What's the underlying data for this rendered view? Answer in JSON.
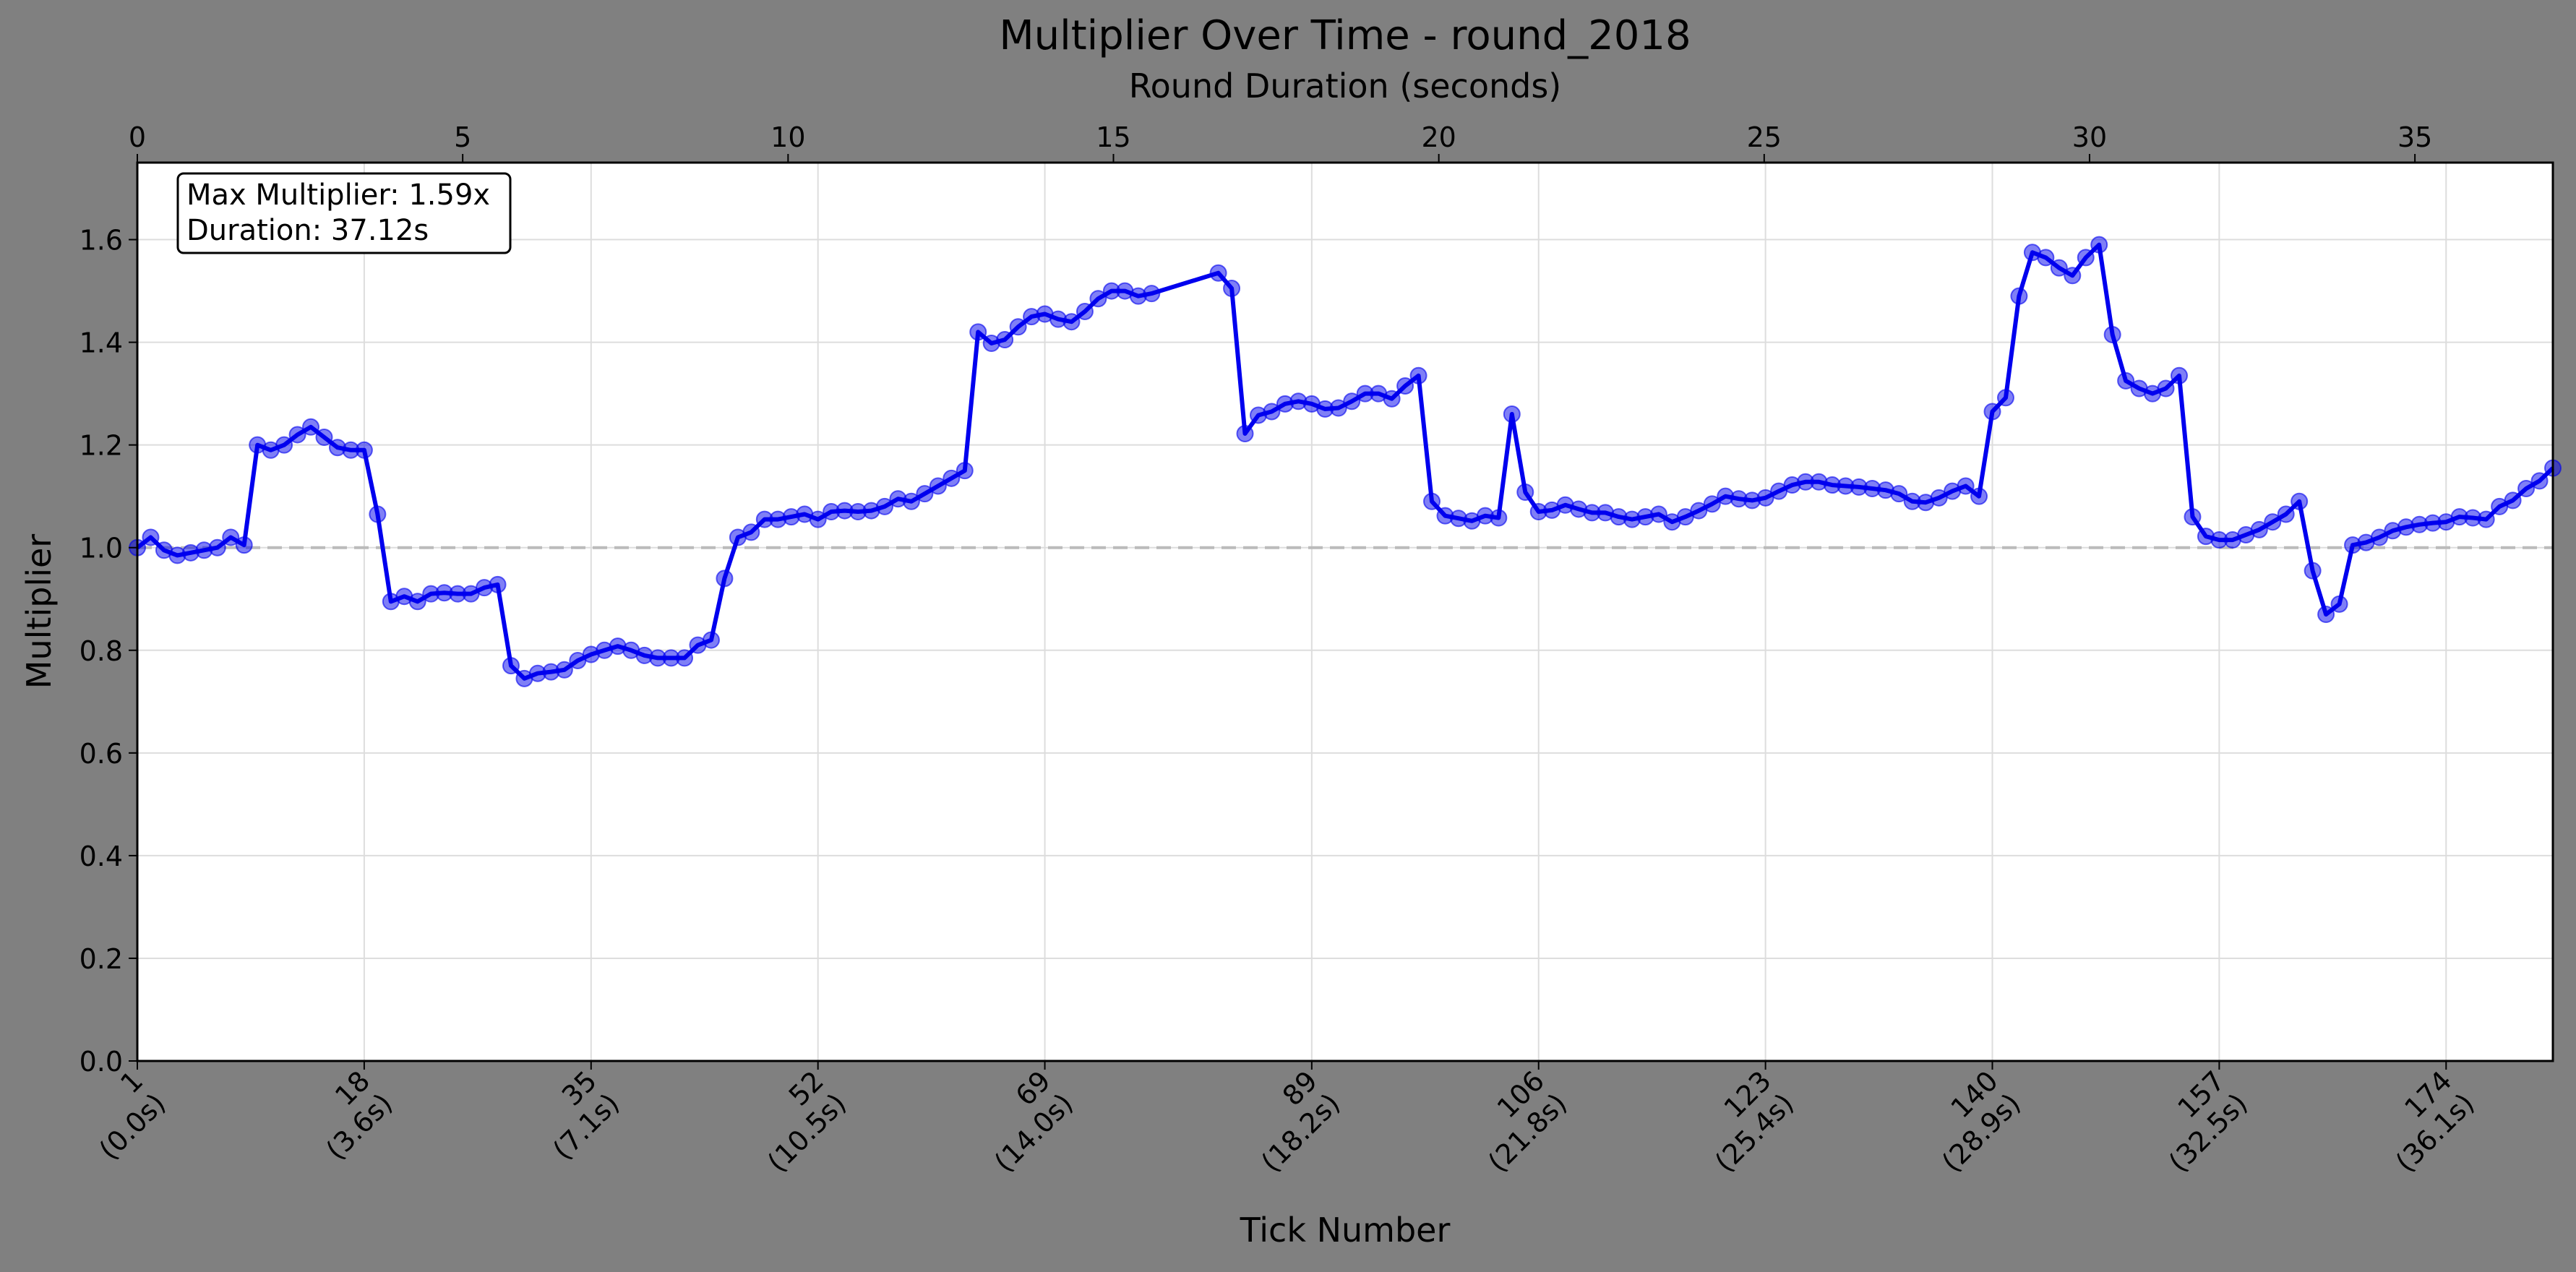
{
  "chart_data": {
    "type": "line",
    "title": "Multiplier Over Time - round_2018",
    "xlabel": "Tick Number",
    "ylabel": "Multiplier",
    "top_xlabel": "Round Duration (seconds)",
    "xlim": [
      1,
      182
    ],
    "ylim": [
      0,
      1.75
    ],
    "top_xlim": [
      0,
      37.12
    ],
    "y_ticks": [
      "0.0",
      "0.2",
      "0.4",
      "0.6",
      "0.8",
      "1.0",
      "1.2",
      "1.4",
      "1.6"
    ],
    "top_x_ticks": [
      "0",
      "5",
      "10",
      "15",
      "20",
      "25",
      "30",
      "35"
    ],
    "x_ticks": [
      {
        "tick": "1",
        "time": "(0.0s)"
      },
      {
        "tick": "18",
        "time": "(3.6s)"
      },
      {
        "tick": "35",
        "time": "(7.1s)"
      },
      {
        "tick": "52",
        "time": "(10.5s)"
      },
      {
        "tick": "69",
        "time": "(14.0s)"
      },
      {
        "tick": "89",
        "time": "(18.2s)"
      },
      {
        "tick": "106",
        "time": "(21.8s)"
      },
      {
        "tick": "123",
        "time": "(25.4s)"
      },
      {
        "tick": "140",
        "time": "(28.9s)"
      },
      {
        "tick": "157",
        "time": "(32.5s)"
      },
      {
        "tick": "174",
        "time": "(36.1s)"
      }
    ],
    "grid": true,
    "reference_line": 1.0,
    "annotation": {
      "max_label": "Max Multiplier: 1.59x",
      "duration_label": "Duration: 37.12s"
    },
    "series": [
      {
        "color": "#0000ee",
        "points": [
          [
            1,
            1.0
          ],
          [
            2,
            1.02
          ],
          [
            3,
            0.995
          ],
          [
            4,
            0.985
          ],
          [
            5,
            0.99
          ],
          [
            6,
            0.995
          ],
          [
            7,
            1.0
          ],
          [
            8,
            1.02
          ],
          [
            9,
            1.005
          ],
          [
            10,
            1.2
          ],
          [
            11,
            1.19
          ],
          [
            12,
            1.2
          ],
          [
            13,
            1.22
          ],
          [
            14,
            1.235
          ],
          [
            15,
            1.215
          ],
          [
            16,
            1.195
          ],
          [
            17,
            1.19
          ],
          [
            18,
            1.19
          ],
          [
            19,
            1.065
          ],
          [
            20,
            0.895
          ],
          [
            21,
            0.905
          ],
          [
            22,
            0.895
          ],
          [
            23,
            0.91
          ],
          [
            24,
            0.912
          ],
          [
            25,
            0.91
          ],
          [
            26,
            0.91
          ],
          [
            27,
            0.922
          ],
          [
            28,
            0.928
          ],
          [
            29,
            0.77
          ],
          [
            30,
            0.745
          ],
          [
            31,
            0.755
          ],
          [
            32,
            0.758
          ],
          [
            33,
            0.762
          ],
          [
            34,
            0.78
          ],
          [
            35,
            0.792
          ],
          [
            36,
            0.8
          ],
          [
            37,
            0.808
          ],
          [
            38,
            0.8
          ],
          [
            39,
            0.79
          ],
          [
            40,
            0.785
          ],
          [
            41,
            0.785
          ],
          [
            42,
            0.785
          ],
          [
            43,
            0.81
          ],
          [
            44,
            0.82
          ],
          [
            45,
            0.94
          ],
          [
            46,
            1.02
          ],
          [
            47,
            1.03
          ],
          [
            48,
            1.055
          ],
          [
            49,
            1.055
          ],
          [
            50,
            1.06
          ],
          [
            51,
            1.065
          ],
          [
            52,
            1.055
          ],
          [
            53,
            1.07
          ],
          [
            54,
            1.072
          ],
          [
            55,
            1.07
          ],
          [
            56,
            1.072
          ],
          [
            57,
            1.08
          ],
          [
            58,
            1.095
          ],
          [
            59,
            1.09
          ],
          [
            60,
            1.105
          ],
          [
            61,
            1.12
          ],
          [
            62,
            1.135
          ],
          [
            63,
            1.15
          ],
          [
            64,
            1.42
          ],
          [
            65,
            1.398
          ],
          [
            66,
            1.405
          ],
          [
            67,
            1.43
          ],
          [
            68,
            1.45
          ],
          [
            69,
            1.455
          ],
          [
            70,
            1.445
          ],
          [
            71,
            1.44
          ],
          [
            72,
            1.46
          ],
          [
            73,
            1.485
          ],
          [
            74,
            1.5
          ],
          [
            75,
            1.5
          ],
          [
            76,
            1.49
          ],
          [
            77,
            1.495
          ],
          [
            82,
            1.535
          ],
          [
            83,
            1.505
          ],
          [
            84,
            1.222
          ],
          [
            85,
            1.258
          ],
          [
            86,
            1.265
          ],
          [
            87,
            1.28
          ],
          [
            88,
            1.285
          ],
          [
            89,
            1.28
          ],
          [
            90,
            1.27
          ],
          [
            91,
            1.272
          ],
          [
            92,
            1.285
          ],
          [
            93,
            1.3
          ],
          [
            94,
            1.3
          ],
          [
            95,
            1.29
          ],
          [
            96,
            1.315
          ],
          [
            97,
            1.335
          ],
          [
            98,
            1.09
          ],
          [
            99,
            1.062
          ],
          [
            100,
            1.057
          ],
          [
            101,
            1.052
          ],
          [
            102,
            1.062
          ],
          [
            103,
            1.058
          ],
          [
            104,
            1.26
          ],
          [
            105,
            1.108
          ],
          [
            106,
            1.07
          ],
          [
            107,
            1.073
          ],
          [
            108,
            1.083
          ],
          [
            109,
            1.075
          ],
          [
            110,
            1.068
          ],
          [
            111,
            1.068
          ],
          [
            112,
            1.06
          ],
          [
            113,
            1.055
          ],
          [
            114,
            1.06
          ],
          [
            115,
            1.065
          ],
          [
            116,
            1.05
          ],
          [
            117,
            1.06
          ],
          [
            118,
            1.072
          ],
          [
            119,
            1.085
          ],
          [
            120,
            1.1
          ],
          [
            121,
            1.095
          ],
          [
            122,
            1.092
          ],
          [
            123,
            1.097
          ],
          [
            124,
            1.11
          ],
          [
            125,
            1.122
          ],
          [
            126,
            1.128
          ],
          [
            127,
            1.128
          ],
          [
            128,
            1.122
          ],
          [
            129,
            1.12
          ],
          [
            130,
            1.118
          ],
          [
            131,
            1.115
          ],
          [
            132,
            1.112
          ],
          [
            133,
            1.105
          ],
          [
            134,
            1.09
          ],
          [
            135,
            1.088
          ],
          [
            136,
            1.097
          ],
          [
            137,
            1.11
          ],
          [
            138,
            1.12
          ],
          [
            139,
            1.1
          ],
          [
            140,
            1.265
          ],
          [
            141,
            1.292
          ],
          [
            142,
            1.49
          ],
          [
            143,
            1.575
          ],
          [
            144,
            1.565
          ],
          [
            145,
            1.545
          ],
          [
            146,
            1.53
          ],
          [
            147,
            1.565
          ],
          [
            148,
            1.59
          ],
          [
            149,
            1.415
          ],
          [
            150,
            1.325
          ],
          [
            151,
            1.31
          ],
          [
            152,
            1.3
          ],
          [
            153,
            1.31
          ],
          [
            154,
            1.335
          ],
          [
            155,
            1.06
          ],
          [
            156,
            1.022
          ],
          [
            157,
            1.015
          ],
          [
            158,
            1.015
          ],
          [
            159,
            1.025
          ],
          [
            160,
            1.035
          ],
          [
            161,
            1.05
          ],
          [
            162,
            1.065
          ],
          [
            163,
            1.09
          ],
          [
            164,
            0.955
          ],
          [
            165,
            0.87
          ],
          [
            166,
            0.89
          ],
          [
            167,
            1.005
          ],
          [
            168,
            1.01
          ],
          [
            169,
            1.02
          ],
          [
            170,
            1.033
          ],
          [
            171,
            1.04
          ],
          [
            172,
            1.045
          ],
          [
            173,
            1.048
          ],
          [
            174,
            1.05
          ],
          [
            175,
            1.06
          ],
          [
            176,
            1.058
          ],
          [
            177,
            1.055
          ],
          [
            178,
            1.08
          ],
          [
            179,
            1.092
          ],
          [
            180,
            1.115
          ],
          [
            181,
            1.13
          ],
          [
            182,
            1.155
          ]
        ]
      }
    ]
  }
}
